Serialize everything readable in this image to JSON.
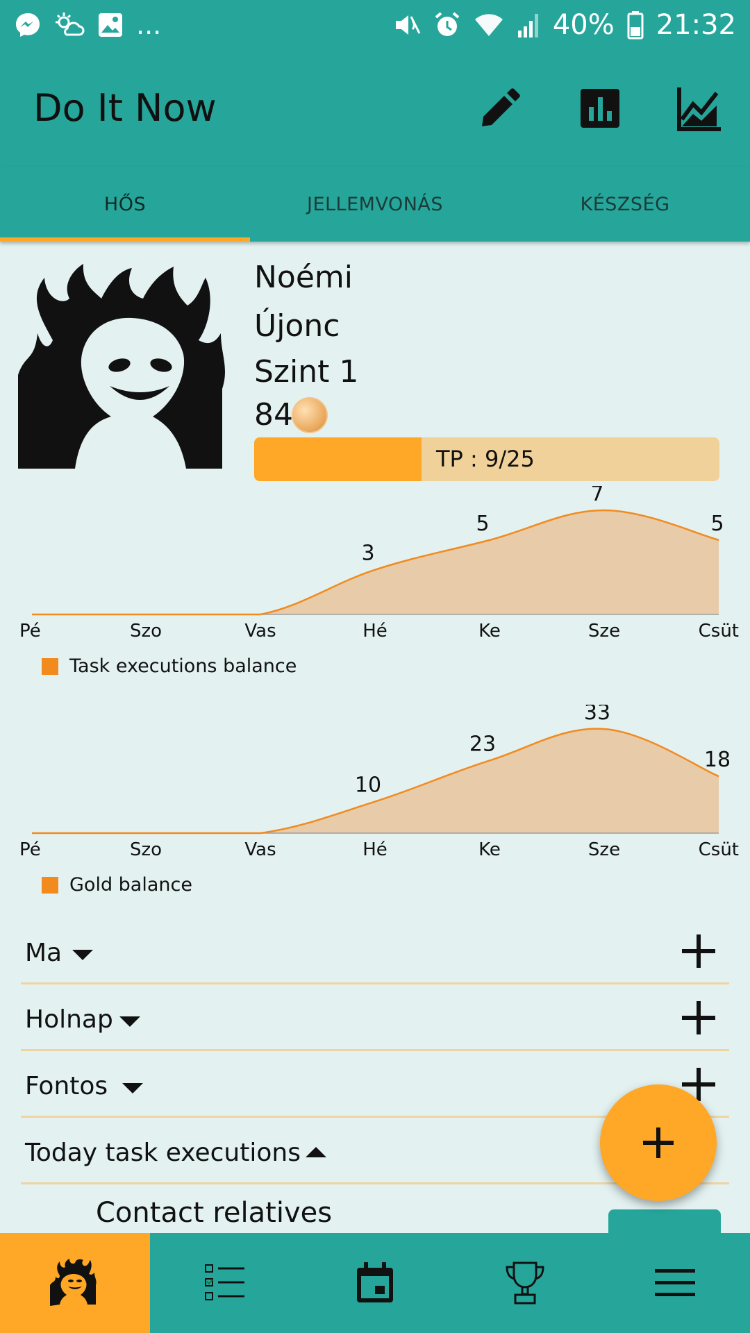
{
  "status_bar": {
    "left_icons": [
      "messenger-icon",
      "weather-icon",
      "image-icon"
    ],
    "more": "...",
    "right_icons": [
      "mute-icon",
      "alarm-icon",
      "wifi-icon",
      "signal-icon"
    ],
    "battery": "40%",
    "time": "21:32"
  },
  "app_bar": {
    "title": "Do It Now",
    "actions": [
      "edit-icon",
      "bar-chart-icon",
      "line-chart-icon"
    ]
  },
  "tabs": [
    {
      "label": "HŐS",
      "active": true
    },
    {
      "label": "JELLEMVONÁS",
      "active": false
    },
    {
      "label": "KÉSZSÉG",
      "active": false
    }
  ],
  "profile": {
    "name": "Noémi",
    "rank": "Újonc",
    "level": "Szint 1",
    "gold": "84",
    "xp_label": "TP : 9/25",
    "xp_fraction": 0.36
  },
  "chart_data": [
    {
      "type": "area",
      "categories": [
        "Pé",
        "Szo",
        "Vas",
        "Hé",
        "Ke",
        "Sze",
        "Csüt"
      ],
      "series": [
        {
          "name": "Task executions balance",
          "values": [
            0,
            0,
            0,
            3,
            5,
            7,
            5
          ]
        }
      ],
      "data_labels": [
        "",
        "",
        "",
        "3",
        "5",
        "7",
        "5"
      ],
      "ylim": [
        0,
        7
      ],
      "legend": "bottom-left",
      "color": "#f28a1e",
      "fill": "#e8cba8"
    },
    {
      "type": "area",
      "categories": [
        "Pé",
        "Szo",
        "Vas",
        "Hé",
        "Ke",
        "Sze",
        "Csüt"
      ],
      "series": [
        {
          "name": "Gold balance",
          "values": [
            0,
            0,
            0,
            10,
            23,
            33,
            18
          ]
        }
      ],
      "data_labels": [
        "",
        "",
        "",
        "10",
        "23",
        "33",
        "18"
      ],
      "ylim": [
        0,
        33
      ],
      "legend": "bottom-left",
      "color": "#f28a1e",
      "fill": "#e8cba8"
    }
  ],
  "sections": [
    {
      "label": "Ma",
      "expanded": false
    },
    {
      "label": "Holnap",
      "expanded": false
    },
    {
      "label": "Fontos",
      "expanded": false
    },
    {
      "label": "Today task executions",
      "expanded": true
    }
  ],
  "task_list": [
    {
      "title": "Contact relatives"
    }
  ],
  "bottom_nav": [
    {
      "icon": "hero-icon",
      "active": true
    },
    {
      "icon": "checklist-icon",
      "active": false
    },
    {
      "icon": "calendar-icon",
      "active": false
    },
    {
      "icon": "trophy-icon",
      "active": false
    },
    {
      "icon": "menu-icon",
      "active": false
    }
  ],
  "colors": {
    "primary": "#26a69a",
    "accent": "#ffa726",
    "background": "#e3f2f1",
    "chart_line": "#f28a1e",
    "chart_fill": "#e8cba8"
  }
}
